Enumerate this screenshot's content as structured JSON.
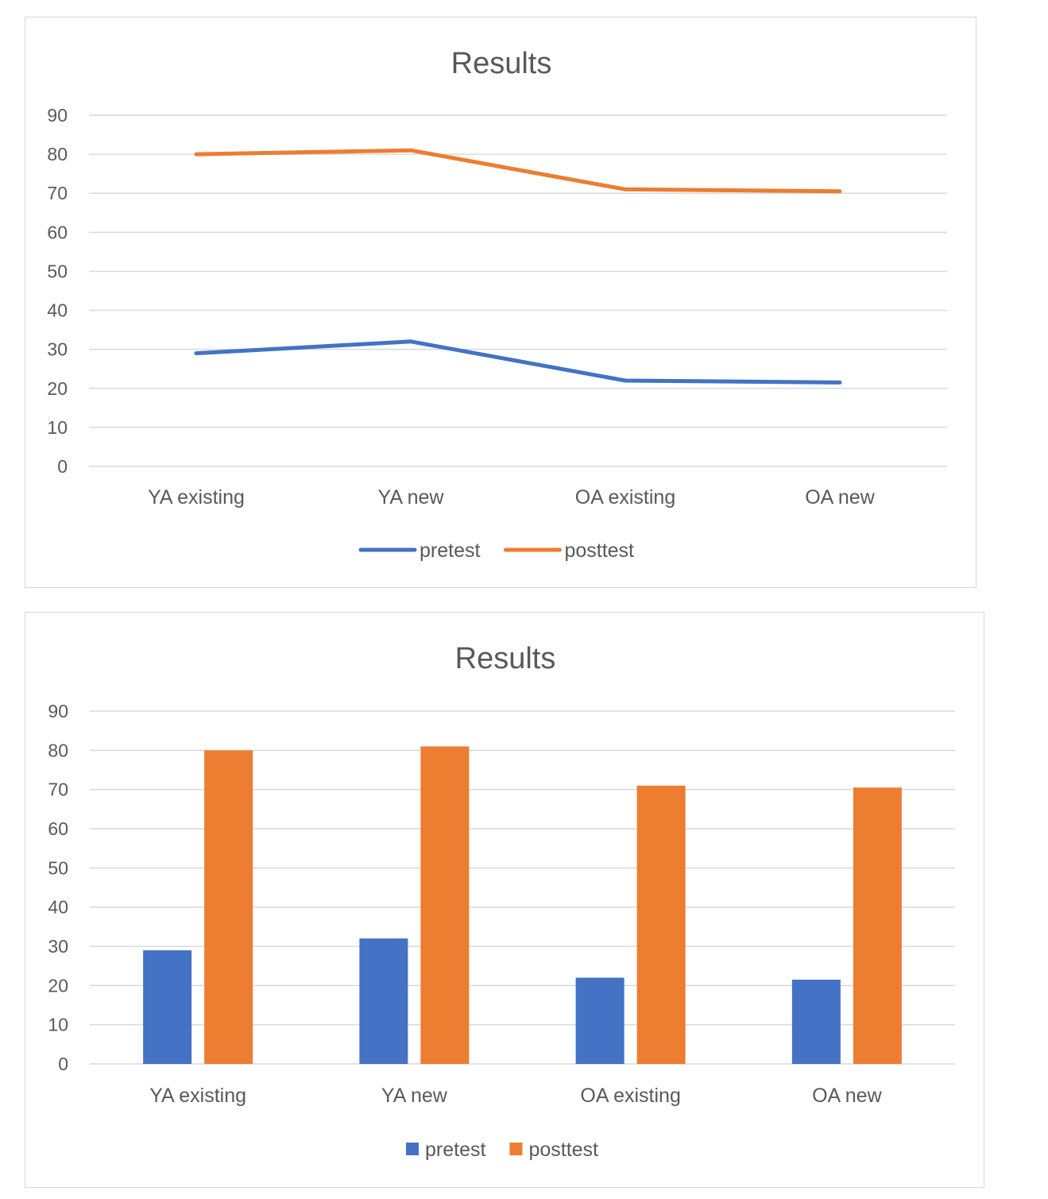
{
  "colors": {
    "pretest": "#4472C4",
    "posttest": "#ED7D31"
  },
  "chart_data": [
    {
      "type": "line",
      "title": "Results",
      "categories": [
        "YA existing",
        "YA new",
        "OA existing",
        "OA new"
      ],
      "series": [
        {
          "name": "pretest",
          "values": [
            29,
            32,
            22,
            21.5
          ]
        },
        {
          "name": "posttest",
          "values": [
            80,
            81,
            71,
            70.5
          ]
        }
      ],
      "ylim": [
        0,
        90
      ],
      "yticks": [
        0,
        10,
        20,
        30,
        40,
        50,
        60,
        70,
        80,
        90
      ],
      "grid": true,
      "legend": "bottom",
      "xlabel": "",
      "ylabel": ""
    },
    {
      "type": "bar",
      "title": "Results",
      "categories": [
        "YA existing",
        "YA new",
        "OA existing",
        "OA new"
      ],
      "series": [
        {
          "name": "pretest",
          "values": [
            29,
            32,
            22,
            21.5
          ]
        },
        {
          "name": "posttest",
          "values": [
            80,
            81,
            71,
            70.5
          ]
        }
      ],
      "ylim": [
        0,
        90
      ],
      "yticks": [
        0,
        10,
        20,
        30,
        40,
        50,
        60,
        70,
        80,
        90
      ],
      "grid": true,
      "legend": "bottom",
      "xlabel": "",
      "ylabel": ""
    }
  ]
}
